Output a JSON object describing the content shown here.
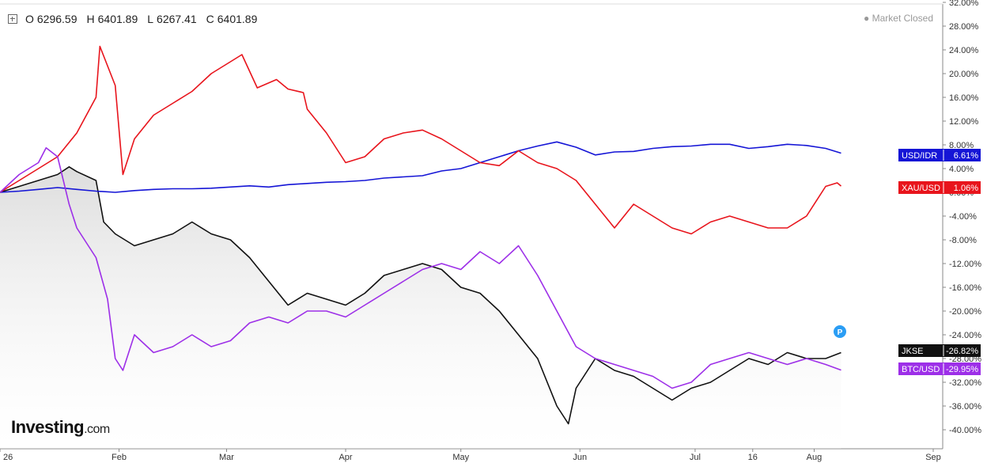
{
  "header": {
    "ohlc": [
      {
        "label": "O",
        "value": "6296.59"
      },
      {
        "label": "H",
        "value": "6401.89"
      },
      {
        "label": "L",
        "value": "6267.41"
      },
      {
        "label": "C",
        "value": "6401.89"
      }
    ],
    "status": "Market Closed"
  },
  "logo": {
    "brand": "Investing",
    "suffix": ".com"
  },
  "chart_data": {
    "type": "line",
    "ylim": [
      -42,
      33
    ],
    "y_ticks": [
      "32.00%",
      "28.00%",
      "24.00%",
      "20.00%",
      "16.00%",
      "12.00%",
      "8.00%",
      "4.00%",
      "0.00%",
      "-4.00%",
      "-8.00%",
      "-12.00%",
      "-16.00%",
      "-20.00%",
      "-24.00%",
      "-28.00%",
      "-32.00%",
      "-36.00%",
      "-40.00%"
    ],
    "y_tick_values": [
      32,
      28,
      24,
      20,
      16,
      12,
      8,
      4,
      0,
      -4,
      -8,
      -12,
      -16,
      -20,
      -24,
      -28,
      -32,
      -36,
      -40
    ],
    "x_ticks": [
      "26",
      "Feb",
      "Mar",
      "Apr",
      "May",
      "Jun",
      "Jul",
      "16",
      "Aug",
      "Sep"
    ],
    "x_tick_values": [
      0,
      31,
      59,
      90,
      120,
      151,
      181,
      196,
      212,
      243
    ],
    "xlim": [
      0,
      243
    ],
    "grid": false,
    "series": [
      {
        "name": "USD/IDR",
        "color": "#1515d6",
        "end_label": "6.61%",
        "x": [
          0,
          5,
          10,
          15,
          20,
          25,
          30,
          35,
          40,
          45,
          50,
          55,
          60,
          65,
          70,
          75,
          80,
          85,
          90,
          95,
          100,
          105,
          110,
          115,
          120,
          125,
          130,
          135,
          140,
          145,
          150,
          155,
          160,
          165,
          170,
          175,
          180,
          185,
          190,
          195,
          200,
          205,
          210,
          215,
          219
        ],
        "y": [
          0,
          0.2,
          0.5,
          0.8,
          0.5,
          0.2,
          0,
          0.3,
          0.5,
          0.6,
          0.6,
          0.7,
          0.9,
          1.1,
          0.9,
          1.3,
          1.5,
          1.7,
          1.8,
          2,
          2.4,
          2.6,
          2.8,
          3.6,
          4,
          5,
          6,
          7,
          7.8,
          8.5,
          7.6,
          6.3,
          6.8,
          6.9,
          7.4,
          7.7,
          7.8,
          8.1,
          8.1,
          7.4,
          7.7,
          8.1,
          7.9,
          7.4,
          6.6
        ]
      },
      {
        "name": "XAU/USD",
        "color": "#e8141c",
        "end_label": "1.06%",
        "x": [
          0,
          5,
          10,
          15,
          20,
          25,
          26,
          30,
          32,
          35,
          40,
          45,
          50,
          55,
          60,
          63,
          67,
          72,
          75,
          79,
          80,
          85,
          90,
          95,
          100,
          105,
          110,
          115,
          120,
          125,
          130,
          135,
          140,
          145,
          150,
          155,
          160,
          165,
          170,
          175,
          180,
          185,
          190,
          195,
          200,
          205,
          210,
          215,
          218,
          219
        ],
        "y": [
          0,
          2,
          4,
          6,
          10,
          16,
          24.6,
          18,
          3,
          9,
          13,
          15,
          17,
          20,
          22,
          23.2,
          17.6,
          19,
          17.4,
          16.8,
          14,
          10,
          5,
          6,
          9,
          10,
          10.5,
          9,
          7,
          5,
          4.5,
          7,
          5,
          4,
          2,
          -2,
          -6,
          -2,
          -4,
          -6,
          -7,
          -5,
          -4,
          -5,
          -6,
          -6,
          -4,
          1,
          1.6,
          1.06
        ]
      },
      {
        "name": "JKSE",
        "color": "#111111",
        "end_label": "-26.82%",
        "x": [
          0,
          5,
          10,
          15,
          18,
          20,
          25,
          27,
          30,
          35,
          40,
          45,
          50,
          55,
          60,
          65,
          70,
          75,
          80,
          85,
          90,
          95,
          100,
          105,
          110,
          115,
          120,
          125,
          130,
          135,
          140,
          145,
          148,
          150,
          155,
          160,
          165,
          170,
          175,
          180,
          185,
          190,
          195,
          200,
          205,
          210,
          215,
          219
        ],
        "y": [
          0,
          1,
          2,
          3,
          4.3,
          3.5,
          2,
          -5,
          -7,
          -9,
          -8,
          -7,
          -5,
          -7,
          -8,
          -11,
          -15,
          -19,
          -17,
          -18,
          -19,
          -17,
          -14,
          -13,
          -12,
          -13,
          -16,
          -17,
          -20,
          -24,
          -28,
          -36,
          -39,
          -33,
          -28,
          -30,
          -31,
          -33,
          -35,
          -33,
          -32,
          -30,
          -28,
          -29,
          -27,
          -28,
          -28,
          -27
        ]
      },
      {
        "name": "BTC/USD",
        "color": "#9d2fe8",
        "end_label": "-29.95%",
        "x": [
          0,
          5,
          10,
          12,
          15,
          18,
          20,
          25,
          28,
          30,
          32,
          35,
          40,
          45,
          50,
          55,
          60,
          65,
          70,
          75,
          80,
          85,
          90,
          95,
          100,
          105,
          110,
          115,
          120,
          125,
          130,
          135,
          140,
          145,
          150,
          155,
          160,
          165,
          170,
          175,
          180,
          185,
          190,
          195,
          200,
          205,
          210,
          215,
          219
        ],
        "y": [
          0,
          3,
          5,
          7.5,
          6,
          -2,
          -6,
          -11,
          -18,
          -28,
          -30,
          -24,
          -27,
          -26,
          -24,
          -26,
          -25,
          -22,
          -21,
          -22,
          -20,
          -20,
          -21,
          -19,
          -17,
          -15,
          -13,
          -12,
          -13,
          -10,
          -12,
          -9,
          -14,
          -20,
          -26,
          -28,
          -29,
          -30,
          -31,
          -33,
          -32,
          -29,
          -28,
          -27,
          -28,
          -29,
          -28,
          -29,
          -29.95
        ]
      }
    ]
  }
}
